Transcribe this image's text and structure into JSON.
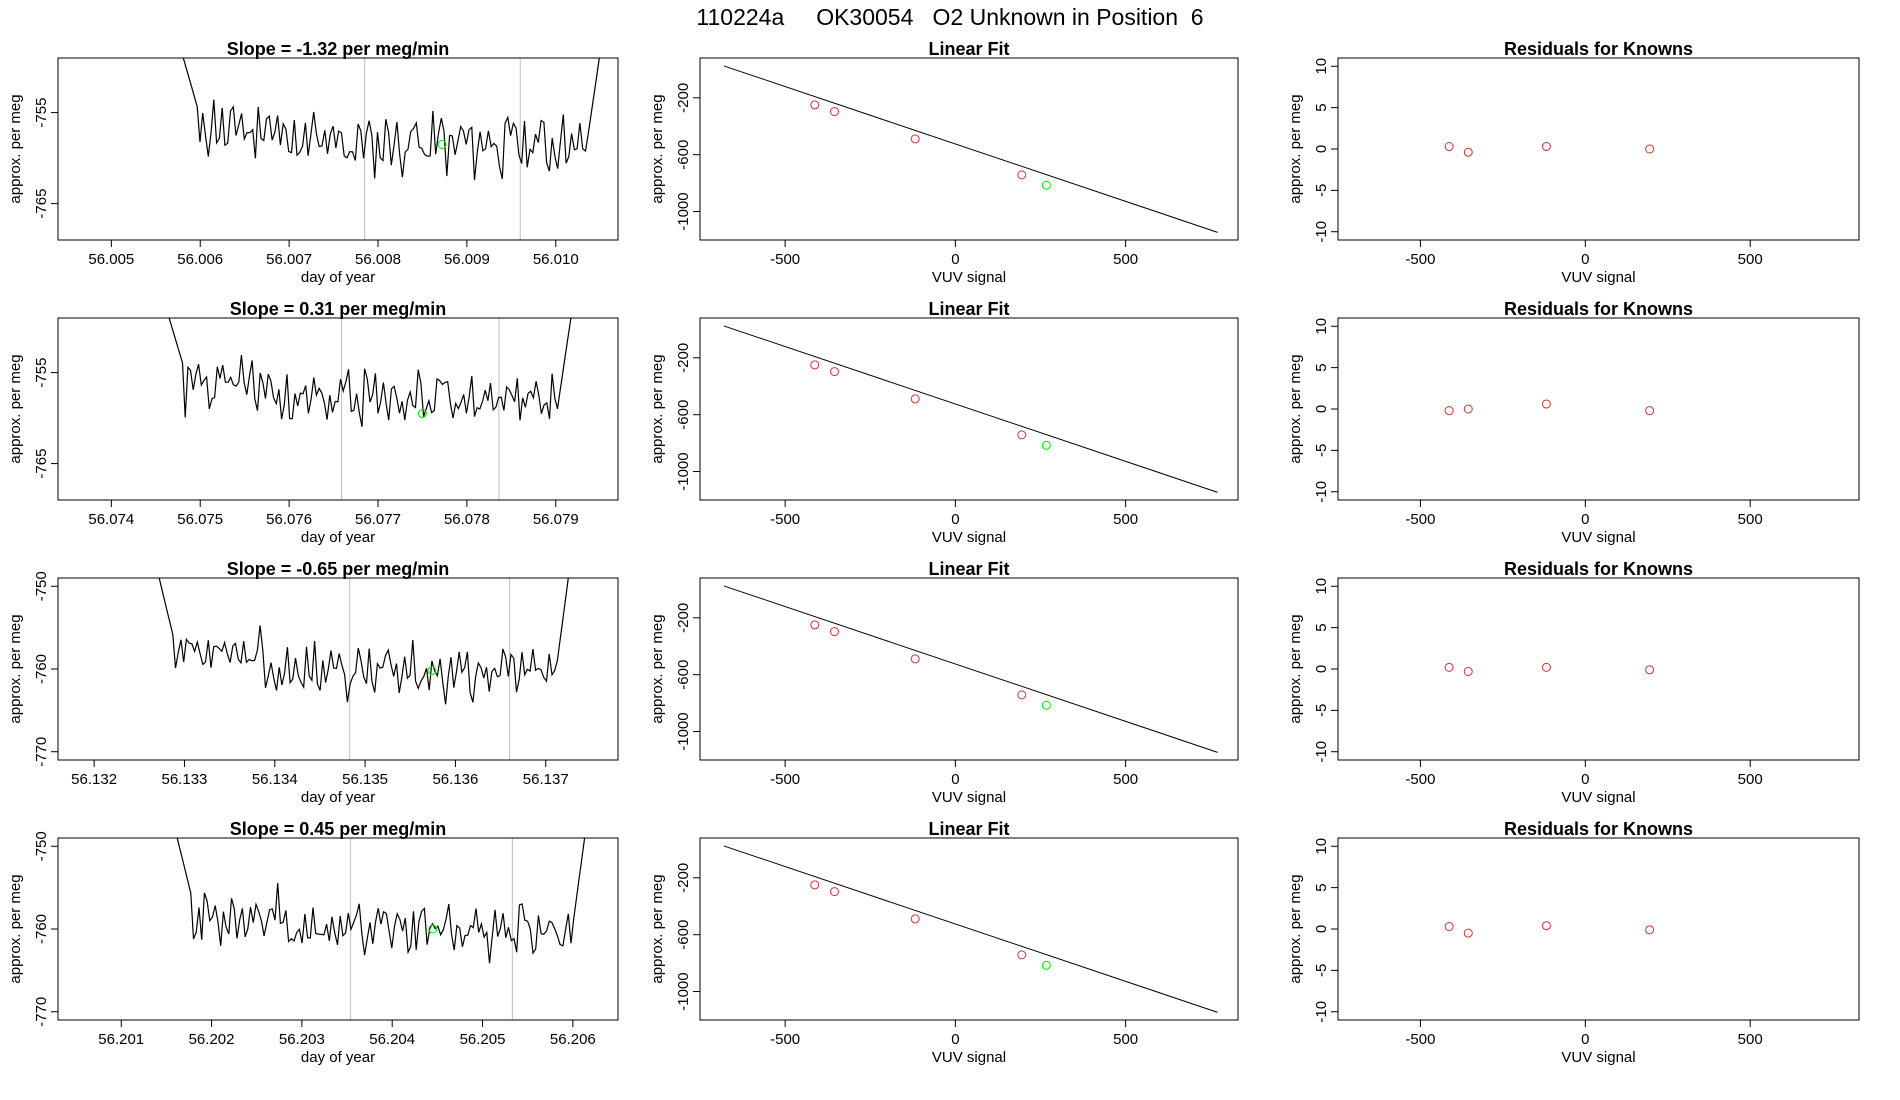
{
  "header": {
    "title": "110224a     OK30054   O2 Unknown in Position  6"
  },
  "colors": {
    "trace": "#000000",
    "known_point": "#cd3333",
    "unknown_point": "#00ee00",
    "marker_line": "#bebebe",
    "axis": "#000000"
  },
  "chart_data": [
    {
      "type": "line",
      "title": "Slope =  -1.32  per meg/min",
      "xlabel": "day of year",
      "ylabel": "approx. per meg",
      "xlim": [
        56.0044,
        56.0107
      ],
      "ylim": [
        -769,
        -749
      ],
      "xticks": [
        "56.005",
        "56.006",
        "56.007",
        "56.008",
        "56.009",
        "56.010"
      ],
      "yticks": [
        "-755",
        "-765"
      ],
      "markers": [
        56.00785,
        56.0096
      ],
      "unknown_point": {
        "x": 56.00872,
        "y": -758.5
      },
      "series": [
        {
          "x_start": 56.00581,
          "x_end": 56.01049,
          "y_start": -749,
          "y_end": -749,
          "mean": -758.4,
          "seed": 11
        }
      ]
    },
    {
      "type": "line",
      "title": "Linear Fit",
      "xlabel": "VUV signal",
      "ylabel": "approx. per meg",
      "xlim": [
        -750,
        830
      ],
      "ylim": [
        -1200,
        80
      ],
      "xticks": [
        "-500",
        "0",
        "500"
      ],
      "yticks": [
        "-200",
        "-600",
        "-1000"
      ],
      "fit_line": {
        "x": [
          -680,
          770
        ],
        "y": [
          24.3,
          -1146.2
        ]
      },
      "known_points": {
        "x": [
          -413,
          -355,
          -118,
          195
        ],
        "y": [
          -250,
          -297,
          -489,
          -742
        ]
      },
      "unknown_point": {
        "x": 267,
        "y": -815
      }
    },
    {
      "type": "scatter",
      "title": "Residuals for Knowns",
      "xlabel": "VUV signal",
      "ylabel": "approx. per meg",
      "xlim": [
        -750,
        830
      ],
      "ylim": [
        -11,
        11
      ],
      "xticks": [
        "-500",
        "0",
        "500"
      ],
      "yticks": [
        "10",
        "5",
        "0",
        "-5",
        "-10"
      ],
      "known_points": {
        "x": [
          -413,
          -355,
          -118,
          195
        ],
        "y": [
          0.3,
          -0.4,
          0.3,
          0.0
        ]
      }
    },
    {
      "type": "line",
      "title": "Slope =  0.31  per meg/min",
      "xlabel": "day of year",
      "ylabel": "approx. per meg",
      "xlim": [
        56.0734,
        56.0797
      ],
      "ylim": [
        -769,
        -749
      ],
      "xticks": [
        "56.074",
        "56.075",
        "56.076",
        "56.077",
        "56.078",
        "56.079"
      ],
      "yticks": [
        "-755",
        "-765"
      ],
      "markers": [
        56.07659,
        56.07836
      ],
      "unknown_point": {
        "x": 56.0775,
        "y": -759.5
      },
      "series": [
        {
          "x_start": 56.07465,
          "x_end": 56.07917,
          "y_start": -749,
          "y_end": -749,
          "mean": -757.9,
          "seed": 23
        }
      ]
    },
    {
      "type": "line",
      "title": "Linear Fit",
      "xlabel": "VUV signal",
      "ylabel": "approx. per meg",
      "xlim": [
        -750,
        830
      ],
      "ylim": [
        -1200,
        80
      ],
      "xticks": [
        "-500",
        "0",
        "500"
      ],
      "yticks": [
        "-200",
        "-600",
        "-1000"
      ],
      "fit_line": {
        "x": [
          -680,
          770
        ],
        "y": [
          24.3,
          -1146.2
        ]
      },
      "known_points": {
        "x": [
          -413,
          -355,
          -118,
          195
        ],
        "y": [
          -250,
          -297,
          -489,
          -742
        ]
      },
      "unknown_point": {
        "x": 267,
        "y": -815
      }
    },
    {
      "type": "scatter",
      "title": "Residuals for Knowns",
      "xlabel": "VUV signal",
      "ylabel": "approx. per meg",
      "xlim": [
        -750,
        830
      ],
      "ylim": [
        -11,
        11
      ],
      "xticks": [
        "-500",
        "0",
        "500"
      ],
      "yticks": [
        "10",
        "5",
        "0",
        "-5",
        "-10"
      ],
      "known_points": {
        "x": [
          -413,
          -355,
          -118,
          195
        ],
        "y": [
          -0.2,
          0.0,
          0.6,
          -0.2
        ]
      }
    },
    {
      "type": "line",
      "title": "Slope =  -0.65  per meg/min",
      "xlabel": "day of year",
      "ylabel": "approx. per meg",
      "xlim": [
        56.1316,
        56.1378
      ],
      "ylim": [
        -771,
        -749
      ],
      "xticks": [
        "56.132",
        "56.133",
        "56.134",
        "56.135",
        "56.136",
        "56.137"
      ],
      "yticks": [
        "-750",
        "-760",
        "-770"
      ],
      "markers": [
        56.13483,
        56.1366
      ],
      "unknown_point": {
        "x": 56.13574,
        "y": -760.2
      },
      "series": [
        {
          "x_start": 56.13272,
          "x_end": 56.13725,
          "y_start": -749,
          "y_end": -749,
          "mean": -760.2,
          "seed": 37
        }
      ]
    },
    {
      "type": "line",
      "title": "Linear Fit",
      "xlabel": "VUV signal",
      "ylabel": "approx. per meg",
      "xlim": [
        -750,
        830
      ],
      "ylim": [
        -1200,
        80
      ],
      "xticks": [
        "-500",
        "0",
        "500"
      ],
      "yticks": [
        "-200",
        "-600",
        "-1000"
      ],
      "fit_line": {
        "x": [
          -680,
          770
        ],
        "y": [
          24.3,
          -1146.2
        ]
      },
      "known_points": {
        "x": [
          -413,
          -355,
          -118,
          195
        ],
        "y": [
          -250,
          -297,
          -489,
          -742
        ]
      },
      "unknown_point": {
        "x": 267,
        "y": -815
      }
    },
    {
      "type": "scatter",
      "title": "Residuals for Knowns",
      "xlabel": "VUV signal",
      "ylabel": "approx. per meg",
      "xlim": [
        -750,
        830
      ],
      "ylim": [
        -11,
        11
      ],
      "xticks": [
        "-500",
        "0",
        "500"
      ],
      "yticks": [
        "10",
        "5",
        "0",
        "-5",
        "-10"
      ],
      "known_points": {
        "x": [
          -413,
          -355,
          -118,
          195
        ],
        "y": [
          0.2,
          -0.3,
          0.2,
          -0.1
        ]
      }
    },
    {
      "type": "line",
      "title": "Slope =  0.45  per meg/min",
      "xlabel": "day of year",
      "ylabel": "approx. per meg",
      "xlim": [
        56.2003,
        56.2065
      ],
      "ylim": [
        -771,
        -749
      ],
      "xticks": [
        "56.201",
        "56.202",
        "56.203",
        "56.204",
        "56.205",
        "56.206"
      ],
      "yticks": [
        "-750",
        "-760",
        "-770"
      ],
      "markers": [
        56.20354,
        56.20533
      ],
      "unknown_point": {
        "x": 56.20445,
        "y": -760.0
      },
      "series": [
        {
          "x_start": 56.20162,
          "x_end": 56.20613,
          "y_start": -749,
          "y_end": -749,
          "mean": -760.0,
          "seed": 53
        }
      ]
    },
    {
      "type": "line",
      "title": "Linear Fit",
      "xlabel": "VUV signal",
      "ylabel": "approx. per meg",
      "xlim": [
        -750,
        830
      ],
      "ylim": [
        -1200,
        80
      ],
      "xticks": [
        "-500",
        "0",
        "500"
      ],
      "yticks": [
        "-200",
        "-600",
        "-1000"
      ],
      "fit_line": {
        "x": [
          -680,
          770
        ],
        "y": [
          24.3,
          -1146.2
        ]
      },
      "known_points": {
        "x": [
          -413,
          -355,
          -118,
          195
        ],
        "y": [
          -250,
          -297,
          -489,
          -742
        ]
      },
      "unknown_point": {
        "x": 267,
        "y": -815
      }
    },
    {
      "type": "scatter",
      "title": "Residuals for Knowns",
      "xlabel": "VUV signal",
      "ylabel": "approx. per meg",
      "xlim": [
        -750,
        830
      ],
      "ylim": [
        -11,
        11
      ],
      "xticks": [
        "-500",
        "0",
        "500"
      ],
      "yticks": [
        "10",
        "5",
        "0",
        "-5",
        "-10"
      ],
      "known_points": {
        "x": [
          -413,
          -355,
          -118,
          195
        ],
        "y": [
          0.3,
          -0.5,
          0.4,
          -0.1
        ]
      }
    }
  ]
}
